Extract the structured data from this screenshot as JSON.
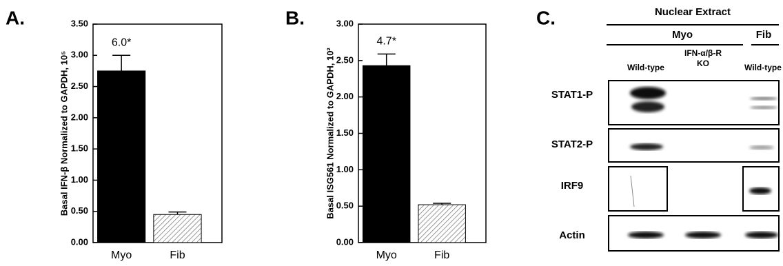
{
  "chart_data": [
    {
      "type": "bar",
      "panel_label": "A.",
      "y_label": "Basal IFN-β Normalized to GAPDH, 10⁵",
      "categories": [
        "Myo",
        "Fib"
      ],
      "values": [
        2.75,
        0.45
      ],
      "errors": [
        0.25,
        0.04
      ],
      "colors": [
        "#000000",
        "#ffffff"
      ],
      "hatch": [
        false,
        true
      ],
      "annotation": "6.0*",
      "ylim": [
        0,
        3.5
      ],
      "yticks": [
        {
          "value": 0,
          "label": "0.00"
        },
        {
          "value": 0.5,
          "label": "0.50"
        },
        {
          "value": 1,
          "label": "1.00"
        },
        {
          "value": 1.5,
          "label": "1.50"
        },
        {
          "value": 2,
          "label": "2.00"
        },
        {
          "value": 2.5,
          "label": "2.50"
        },
        {
          "value": 3,
          "label": "3.00"
        },
        {
          "value": 3.5,
          "label": "3.50"
        }
      ]
    },
    {
      "type": "bar",
      "panel_label": "B.",
      "y_label": "Basal ISG561 Normalized to GAPDH, 10²",
      "categories": [
        "Myo",
        "Fib"
      ],
      "values": [
        2.43,
        0.52
      ],
      "errors": [
        0.16,
        0.02
      ],
      "colors": [
        "#000000",
        "#ffffff"
      ],
      "hatch": [
        false,
        true
      ],
      "annotation": "4.7*",
      "ylim": [
        0,
        3
      ],
      "yticks": [
        {
          "value": 0,
          "label": "0.00"
        },
        {
          "value": 0.5,
          "label": "0.50"
        },
        {
          "value": 1,
          "label": "1.00"
        },
        {
          "value": 1.5,
          "label": "1.50"
        },
        {
          "value": 2,
          "label": "2.00"
        },
        {
          "value": 2.5,
          "label": "2.50"
        },
        {
          "value": 3,
          "label": "3.00"
        }
      ]
    }
  ],
  "blot": {
    "panel_label": "C.",
    "title": "Nuclear Extract",
    "groups": [
      "Myo",
      "Fib"
    ],
    "lanes": [
      [
        "Wild-type"
      ],
      [
        "IFN-α/β-R",
        "KO"
      ],
      [
        "Wild-type"
      ]
    ],
    "rows": [
      "STAT1-P",
      "STAT2-P",
      "IRF9",
      "Actin"
    ]
  }
}
